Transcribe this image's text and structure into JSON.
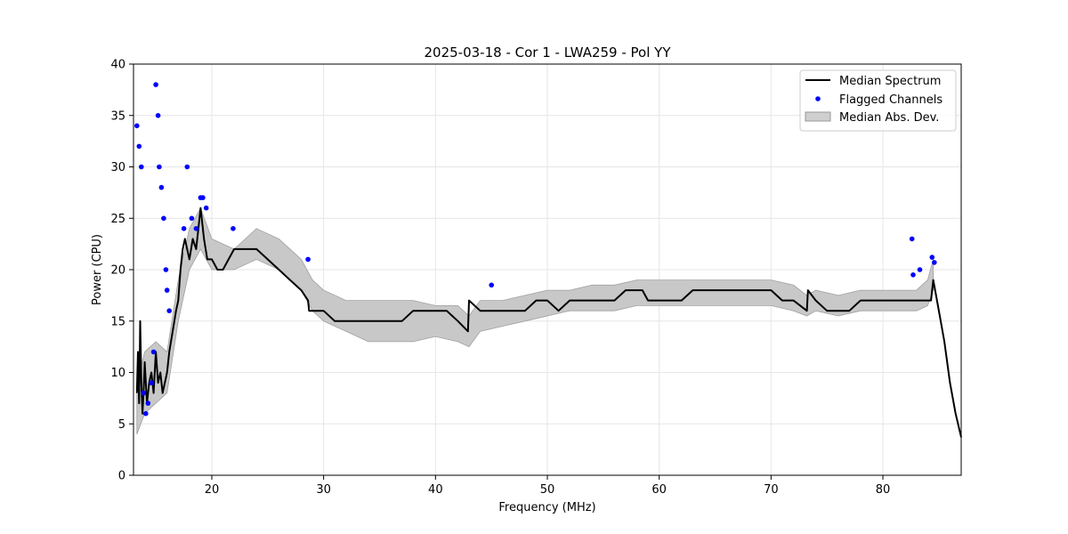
{
  "chart_data": {
    "type": "line",
    "title": "2025-03-18 - Cor 1 - LWA259 - Pol YY",
    "xlabel": "Frequency (MHz)",
    "ylabel": "Power (CPU)",
    "xlim": [
      13,
      87
    ],
    "ylim": [
      0,
      40
    ],
    "xticks": [
      20,
      30,
      40,
      50,
      60,
      70,
      80
    ],
    "yticks": [
      0,
      5,
      10,
      15,
      20,
      25,
      30,
      35,
      40
    ],
    "grid": true,
    "legend_position": "top-right",
    "legend": [
      "Median Spectrum",
      "Flagged Channels",
      "Median Abs. Dev."
    ],
    "colors": {
      "median": "#000000",
      "flagged": "#0000ff",
      "mad": "#a0a0a0"
    },
    "series": [
      {
        "name": "Median Spectrum",
        "x": [
          13.3,
          13.4,
          13.5,
          13.6,
          13.7,
          13.8,
          13.9,
          14.0,
          14.2,
          14.4,
          14.6,
          14.8,
          15.0,
          15.2,
          15.4,
          15.6,
          15.8,
          16.0,
          16.2,
          16.5,
          16.8,
          17.0,
          17.2,
          17.4,
          17.6,
          17.8,
          18.0,
          18.3,
          18.6,
          19.0,
          19.3,
          19.6,
          20.0,
          20.5,
          21.0,
          21.5,
          22.0,
          22.5,
          23.0,
          24.0,
          25.0,
          26.0,
          27.0,
          28.0,
          28.6,
          28.7,
          29.0,
          30.0,
          31.0,
          32.0,
          33.0,
          34.0,
          35.0,
          36.0,
          37.0,
          38.0,
          39.0,
          40.0,
          41.0,
          42.0,
          42.9,
          43.0,
          44.0,
          45.0,
          46.0,
          47.0,
          48.0,
          49.0,
          50.0,
          51.0,
          52.0,
          53.0,
          54.0,
          55.0,
          56.0,
          57.0,
          58.0,
          58.5,
          59.0,
          60.0,
          61.0,
          62.0,
          63.0,
          64.0,
          65.0,
          66.0,
          67.0,
          68.0,
          69.0,
          70.0,
          71.0,
          72.0,
          73.2,
          73.3,
          74.0,
          75.0,
          76.0,
          77.0,
          78.0,
          79.0,
          80.0,
          81.0,
          82.0,
          82.5,
          83.0,
          83.5,
          84.0,
          84.3,
          84.5,
          85.0,
          85.5,
          86.0,
          86.5,
          87.0
        ],
        "y": [
          8,
          12,
          7,
          15,
          9,
          6,
          8,
          11,
          7,
          9,
          10,
          8,
          12,
          9,
          10,
          8,
          9,
          10,
          12,
          14,
          16,
          17,
          20,
          22,
          23,
          22,
          21,
          23,
          22,
          26,
          23,
          21,
          21,
          20,
          20,
          21,
          22,
          22,
          22,
          22,
          21,
          20,
          19,
          18,
          17,
          16,
          16,
          16,
          15,
          15,
          15,
          15,
          15,
          15,
          15,
          16,
          16,
          16,
          16,
          15,
          14,
          17,
          16,
          16,
          16,
          16,
          16,
          17,
          17,
          16,
          17,
          17,
          17,
          17,
          17,
          18,
          18,
          18,
          17,
          17,
          17,
          17,
          18,
          18,
          18,
          18,
          18,
          18,
          18,
          18,
          17,
          17,
          16,
          18,
          17,
          16,
          16,
          16,
          17,
          17,
          17,
          17,
          17,
          17,
          17,
          17,
          17,
          17,
          19,
          16,
          13,
          9,
          6,
          3.7
        ]
      },
      {
        "name": "Flagged Channels",
        "x": [
          13.3,
          13.5,
          13.7,
          13.9,
          14.1,
          14.3,
          14.6,
          14.8,
          15.0,
          15.2,
          15.3,
          15.5,
          15.7,
          15.9,
          16.0,
          16.2,
          17.5,
          17.8,
          18.2,
          18.6,
          19.0,
          19.2,
          19.5,
          21.9,
          28.6,
          45.0,
          82.6,
          82.7,
          83.3,
          84.4,
          84.6
        ],
        "y": [
          34,
          32,
          30,
          8,
          6,
          7,
          9,
          12,
          38,
          35,
          30,
          28,
          25,
          20,
          18,
          16,
          24,
          30,
          25,
          24,
          27,
          27,
          26,
          24,
          21,
          18.5,
          23,
          19.5,
          20,
          21.2,
          20.7
        ]
      },
      {
        "name": "Median Abs. Dev.",
        "x": [
          13.3,
          14,
          15,
          16,
          17,
          18,
          19,
          20,
          22,
          24,
          26,
          28,
          29,
          30,
          32,
          34,
          36,
          38,
          40,
          42,
          43,
          44,
          46,
          48,
          50,
          52,
          54,
          56,
          58,
          60,
          62,
          64,
          66,
          68,
          70,
          72,
          73.2,
          74,
          76,
          78,
          80,
          82,
          83,
          84,
          84.5
        ],
        "upper": [
          9,
          12,
          13,
          12,
          19,
          24,
          26,
          23,
          22,
          24,
          23,
          21,
          19,
          18,
          17,
          17,
          17,
          17,
          16.5,
          16.5,
          15.5,
          17,
          17,
          17.5,
          18,
          18,
          18.5,
          18.5,
          19,
          19,
          19,
          19,
          19,
          19,
          19,
          18.5,
          17.5,
          18,
          17.5,
          18,
          18,
          18,
          18,
          19,
          21
        ],
        "lower": [
          4,
          6,
          7,
          8,
          15,
          20,
          22,
          20,
          20,
          21,
          20,
          18,
          16,
          15,
          14,
          13,
          13,
          13,
          13.5,
          13,
          12.5,
          14,
          14.5,
          15,
          15.5,
          16,
          16,
          16,
          16.5,
          16.5,
          16.5,
          16.5,
          16.5,
          16.5,
          16.5,
          16,
          15.5,
          16,
          15.5,
          16,
          16,
          16,
          16,
          16.5,
          18
        ]
      }
    ]
  }
}
